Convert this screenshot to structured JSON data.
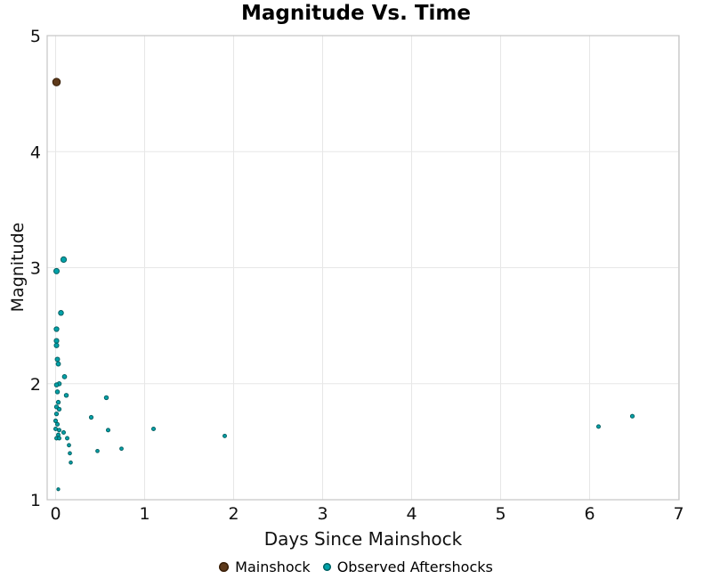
{
  "title": "Magnitude Vs. Time",
  "xlabel": "Days Since Mainshock",
  "ylabel": "Magnitude",
  "legend": [
    {
      "label": "Mainshock",
      "color": "#5E3A1B",
      "edge": "#39200A"
    },
    {
      "label": "Observed Aftershocks",
      "color": "#00A2A9",
      "edge": "#076163"
    }
  ],
  "chart_data": {
    "type": "scatter",
    "title": "Magnitude Vs. Time",
    "xlabel": "Days Since Mainshock",
    "ylabel": "Magnitude",
    "xlim": [
      -0.095,
      7.005
    ],
    "ylim": [
      1,
      5
    ],
    "xticks": [
      0,
      1,
      2,
      3,
      4,
      5,
      6,
      7
    ],
    "yticks": [
      1,
      2,
      3,
      4,
      5
    ],
    "grid": true,
    "grid_color": "#e7e7e7",
    "spine_color": "#c4c4c4",
    "legend_position": "bottom",
    "marker_size_by": "magnitude",
    "series": [
      {
        "name": "Mainshock",
        "color": "#5E3A1B",
        "edge": "#39200A",
        "points": [
          [
            0.01,
            4.6
          ]
        ]
      },
      {
        "name": "Observed Aftershocks",
        "color": "#00A2A9",
        "edge": "#076163",
        "points": [
          [
            0.09,
            3.07
          ],
          [
            0.01,
            2.97
          ],
          [
            0.06,
            2.61
          ],
          [
            0.01,
            2.47
          ],
          [
            0.01,
            2.37
          ],
          [
            0.01,
            2.33
          ],
          [
            0.02,
            2.21
          ],
          [
            0.03,
            2.17
          ],
          [
            0.1,
            2.06
          ],
          [
            0.04,
            2.0
          ],
          [
            0.01,
            1.99
          ],
          [
            0.02,
            1.93
          ],
          [
            0.12,
            1.9
          ],
          [
            0.57,
            1.88
          ],
          [
            0.03,
            1.84
          ],
          [
            0.01,
            1.8
          ],
          [
            0.04,
            1.78
          ],
          [
            0.01,
            1.74
          ],
          [
            0.0,
            1.68
          ],
          [
            0.02,
            1.65
          ],
          [
            0.0,
            1.61
          ],
          [
            0.04,
            1.6
          ],
          [
            0.09,
            1.58
          ],
          [
            0.03,
            1.56
          ],
          [
            0.01,
            1.53
          ],
          [
            0.04,
            1.53
          ],
          [
            0.13,
            1.53
          ],
          [
            0.15,
            1.47
          ],
          [
            0.16,
            1.4
          ],
          [
            0.17,
            1.32
          ],
          [
            0.4,
            1.71
          ],
          [
            0.47,
            1.42
          ],
          [
            0.59,
            1.6
          ],
          [
            0.74,
            1.44
          ],
          [
            1.1,
            1.61
          ],
          [
            1.9,
            1.55
          ],
          [
            6.1,
            1.63
          ],
          [
            6.48,
            1.72
          ],
          [
            0.03,
            1.09
          ]
        ]
      }
    ]
  }
}
